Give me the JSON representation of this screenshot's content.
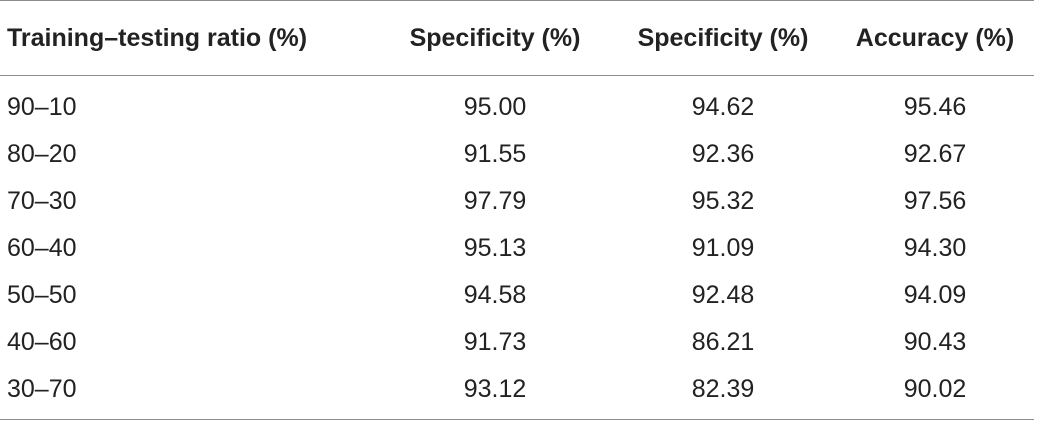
{
  "table": {
    "headers": [
      "Training–testing ratio (%)",
      "Specificity (%)",
      "Specificity (%)",
      "Accuracy (%)"
    ],
    "rows": [
      [
        "90–10",
        "95.00",
        "94.62",
        "95.46"
      ],
      [
        "80–20",
        "91.55",
        "92.36",
        "92.67"
      ],
      [
        "70–30",
        "97.79",
        "95.32",
        "97.56"
      ],
      [
        "60–40",
        "95.13",
        "91.09",
        "94.30"
      ],
      [
        "50–50",
        "94.58",
        "92.48",
        "94.09"
      ],
      [
        "40–60",
        "91.73",
        "86.21",
        "90.43"
      ],
      [
        "30–70",
        "93.12",
        "82.39",
        "90.02"
      ]
    ]
  }
}
